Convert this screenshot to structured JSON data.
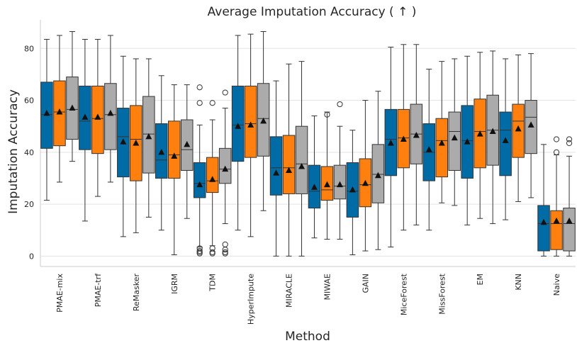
{
  "chart_data": {
    "type": "box",
    "title": "Average Imputation Accuracy ( ↑ )",
    "xlabel": "Method",
    "ylabel": "Imputation Accuracy",
    "ylim": [
      -4,
      91
    ],
    "yticks": [
      0,
      20,
      40,
      60,
      80
    ],
    "grid": "horizontal",
    "mean_marker": "triangle",
    "colors": [
      "#006ba4",
      "#ff800e",
      "#ababab"
    ],
    "categories": [
      "PMAE-mix",
      "PMAE-trf",
      "ReMasker",
      "IGRM",
      "TDM",
      "HyperImpute",
      "MIRACLE",
      "MIWAE",
      "GAIN",
      "MiceForest",
      "MissForest",
      "EM",
      "KNN",
      "Naive"
    ],
    "series": [
      {
        "values": [
          {
            "whislo": 21.5,
            "q1": 41.5,
            "med": 54.5,
            "q3": 67,
            "whishi": 83.5,
            "mean": 55,
            "fliers": []
          },
          {
            "whislo": 13.5,
            "q1": 41,
            "med": 52,
            "q3": 65.5,
            "whishi": 83.5,
            "mean": 53.5,
            "fliers": []
          },
          {
            "whislo": 7.5,
            "q1": 30.5,
            "med": 46,
            "q3": 57,
            "whishi": 77,
            "mean": 44,
            "fliers": []
          },
          {
            "whislo": 10,
            "q1": 30,
            "med": 37,
            "q3": 51,
            "whishi": 69.5,
            "mean": 40,
            "fliers": []
          },
          {
            "whislo": 3.5,
            "q1": 22.5,
            "med": 28,
            "q3": 36,
            "whishi": 50.5,
            "mean": 27.5,
            "fliers": [
              65,
              59,
              3,
              2,
              1.5,
              1
            ]
          },
          {
            "whislo": 10,
            "q1": 36.5,
            "med": 50.5,
            "q3": 65.5,
            "whishi": 85,
            "mean": 50,
            "fliers": []
          },
          {
            "whislo": 0,
            "q1": 23.5,
            "med": 34,
            "q3": 46,
            "whishi": 67.5,
            "mean": 32,
            "fliers": []
          },
          {
            "whislo": 7,
            "q1": 18.5,
            "med": 25,
            "q3": 35,
            "whishi": 54,
            "mean": 26.5,
            "fliers": []
          },
          {
            "whislo": 0.5,
            "q1": 15,
            "med": 25,
            "q3": 36,
            "whishi": 48.5,
            "mean": 25.5,
            "fliers": []
          },
          {
            "whislo": 3.5,
            "q1": 31,
            "med": 45,
            "q3": 56.5,
            "whishi": 80.5,
            "mean": 43.5,
            "fliers": []
          },
          {
            "whislo": 10,
            "q1": 29,
            "med": 40,
            "q3": 51,
            "whishi": 72,
            "mean": 41,
            "fliers": []
          },
          {
            "whislo": 12,
            "q1": 30,
            "med": 44.5,
            "q3": 58,
            "whishi": 77,
            "mean": 44,
            "fliers": []
          },
          {
            "whislo": 14,
            "q1": 31,
            "med": 48.5,
            "q3": 55.5,
            "whishi": 76,
            "mean": 44.5,
            "fliers": []
          },
          {
            "whislo": 0,
            "q1": 2,
            "med": 12.5,
            "q3": 19.5,
            "whishi": 43,
            "mean": 13,
            "fliers": []
          }
        ]
      },
      {
        "values": [
          {
            "whislo": 28.5,
            "q1": 42.5,
            "med": 55.5,
            "q3": 67.5,
            "whishi": 85,
            "mean": 55.5,
            "fliers": []
          },
          {
            "whislo": 23,
            "q1": 39.5,
            "med": 53,
            "q3": 65.5,
            "whishi": 83.5,
            "mean": 53.5,
            "fliers": []
          },
          {
            "whislo": 9,
            "q1": 29,
            "med": 45,
            "q3": 58,
            "whishi": 76,
            "mean": 43.5,
            "fliers": []
          },
          {
            "whislo": 0.5,
            "q1": 30,
            "med": 39,
            "q3": 52,
            "whishi": 66,
            "mean": 38.5,
            "fliers": []
          },
          {
            "whislo": 4,
            "q1": 24.5,
            "med": 29,
            "q3": 38,
            "whishi": 52.5,
            "mean": 29.5,
            "fliers": [
              59,
              3,
              1.5,
              1
            ]
          },
          {
            "whislo": 7.5,
            "q1": 38,
            "med": 51,
            "q3": 65.5,
            "whishi": 85.5,
            "mean": 50.5,
            "fliers": []
          },
          {
            "whislo": 0,
            "q1": 24,
            "med": 34,
            "q3": 46.5,
            "whishi": 74,
            "mean": 33,
            "fliers": []
          },
          {
            "whislo": 6.5,
            "q1": 21.5,
            "med": 25.5,
            "q3": 34.5,
            "whishi": 55.5,
            "mean": 27.5,
            "fliers": [
              54.5
            ]
          },
          {
            "whislo": 2,
            "q1": 19,
            "med": 27.5,
            "q3": 37.5,
            "whishi": 60,
            "mean": 28,
            "fliers": []
          },
          {
            "whislo": 10,
            "q1": 34,
            "med": 45.5,
            "q3": 56.5,
            "whishi": 81.5,
            "mean": 45,
            "fliers": []
          },
          {
            "whislo": 20.5,
            "q1": 30.5,
            "med": 44.5,
            "q3": 53,
            "whishi": 75,
            "mean": 43.5,
            "fliers": []
          },
          {
            "whislo": 14.5,
            "q1": 34,
            "med": 48,
            "q3": 60.5,
            "whishi": 78.5,
            "mean": 47,
            "fliers": []
          },
          {
            "whislo": 21,
            "q1": 38,
            "med": 52,
            "q3": 58.5,
            "whishi": 77.5,
            "mean": 49,
            "fliers": []
          },
          {
            "whislo": 0,
            "q1": 2.5,
            "med": 12.5,
            "q3": 17.5,
            "whishi": 39,
            "mean": 13.5,
            "fliers": [
              45,
              40
            ]
          }
        ]
      },
      {
        "values": [
          {
            "whislo": 36.5,
            "q1": 45,
            "med": 56.5,
            "q3": 69,
            "whishi": 86.5,
            "mean": 57,
            "fliers": []
          },
          {
            "whislo": 28.5,
            "q1": 41,
            "med": 54.5,
            "q3": 66.5,
            "whishi": 85,
            "mean": 55,
            "fliers": []
          },
          {
            "whislo": 15,
            "q1": 32,
            "med": 47,
            "q3": 61.5,
            "whishi": 76,
            "mean": 46,
            "fliers": []
          },
          {
            "whislo": 14.5,
            "q1": 33,
            "med": 41,
            "q3": 52.5,
            "whishi": 66,
            "mean": 43,
            "fliers": []
          },
          {
            "whislo": 12.5,
            "q1": 28,
            "med": 33.5,
            "q3": 41.5,
            "whishi": 57,
            "mean": 33.5,
            "fliers": [
              63,
              4.5,
              2.5,
              1.5,
              1
            ]
          },
          {
            "whislo": 17.5,
            "q1": 38.5,
            "med": 53,
            "q3": 66.5,
            "whishi": 86.5,
            "mean": 52,
            "fliers": []
          },
          {
            "whislo": 0,
            "q1": 24,
            "med": 35.5,
            "q3": 50,
            "whishi": 75,
            "mean": 34.5,
            "fliers": []
          },
          {
            "whislo": 6.5,
            "q1": 22,
            "med": 27,
            "q3": 35,
            "whishi": 50,
            "mean": 27.5,
            "fliers": [
              58.5
            ]
          },
          {
            "whislo": 2.5,
            "q1": 20.5,
            "med": 31.5,
            "q3": 43,
            "whishi": 63.5,
            "mean": 31,
            "fliers": []
          },
          {
            "whislo": 12,
            "q1": 35.5,
            "med": 47,
            "q3": 58.5,
            "whishi": 81.5,
            "mean": 46.5,
            "fliers": []
          },
          {
            "whislo": 19.5,
            "q1": 33,
            "med": 48,
            "q3": 55.5,
            "whishi": 76,
            "mean": 45.5,
            "fliers": []
          },
          {
            "whislo": 12.5,
            "q1": 35,
            "med": 48.5,
            "q3": 62,
            "whishi": 79,
            "mean": 48,
            "fliers": []
          },
          {
            "whislo": 22.5,
            "q1": 39.5,
            "med": 53.5,
            "q3": 60,
            "whishi": 78,
            "mean": 50.5,
            "fliers": []
          },
          {
            "whislo": 0,
            "q1": 2,
            "med": 12.5,
            "q3": 18.5,
            "whishi": 38.5,
            "mean": 13.5,
            "fliers": [
              45,
              43.5
            ]
          }
        ]
      }
    ]
  }
}
